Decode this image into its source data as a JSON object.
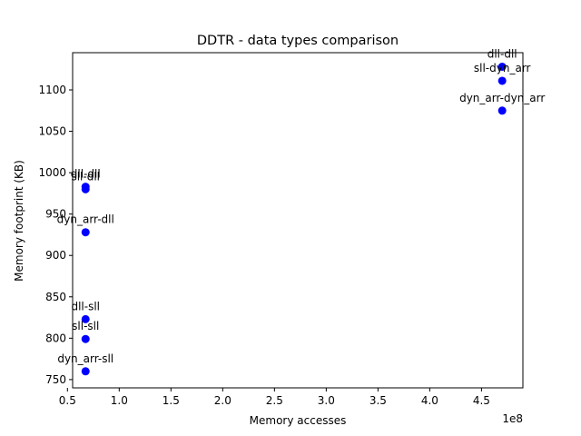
{
  "chart_data": {
    "type": "scatter",
    "title": "DDTR - data types comparison",
    "xlabel": "Memory accesses",
    "ylabel": "Memory footprint (KB)",
    "x_offset_text": "1e8",
    "xlim": [
      0.55,
      4.9
    ],
    "ylim": [
      740,
      1145
    ],
    "x_scale_factor": 100000000,
    "xticks": [
      0.5,
      1.0,
      1.5,
      2.0,
      2.5,
      3.0,
      3.5,
      4.0,
      4.5
    ],
    "xtick_labels": [
      "0.5",
      "1.0",
      "1.5",
      "2.0",
      "2.5",
      "3.0",
      "3.5",
      "4.0",
      "4.5"
    ],
    "yticks": [
      750,
      800,
      850,
      900,
      950,
      1000,
      1050,
      1100
    ],
    "ytick_labels": [
      "750",
      "800",
      "850",
      "900",
      "950",
      "1000",
      "1050",
      "1100"
    ],
    "marker_color": "#0000ff",
    "grid": false,
    "points": [
      {
        "label": "dll-dll",
        "x": 4.7,
        "y": 1128
      },
      {
        "label": "sll-dyn_arr",
        "x": 4.7,
        "y": 1111
      },
      {
        "label": "dyn_arr-dyn_arr",
        "x": 4.7,
        "y": 1075
      },
      {
        "label": "dll-dll",
        "x": 0.675,
        "y": 983
      },
      {
        "label": "sll-dll",
        "x": 0.675,
        "y": 980
      },
      {
        "label": "dyn_arr-dll",
        "x": 0.675,
        "y": 928
      },
      {
        "label": "dll-sll",
        "x": 0.675,
        "y": 823
      },
      {
        "label": "sll-sll",
        "x": 0.675,
        "y": 799
      },
      {
        "label": "dyn_arr-sll",
        "x": 0.675,
        "y": 760
      }
    ]
  }
}
